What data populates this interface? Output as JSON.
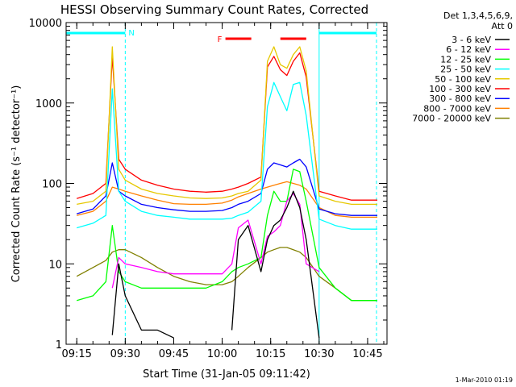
{
  "chart_data": {
    "type": "line",
    "title": "HESSI Observing Summary Count Rates, Corrected",
    "xlabel": "Start Time (31-Jan-05 09:11:42)",
    "ylabel": "Corrected Count Rate (s⁻¹ detector⁻¹)",
    "yscale": "log",
    "ylim": [
      1,
      10000
    ],
    "xlim": [
      "09:11:42",
      "10:51:00"
    ],
    "x_ticks": [
      "09:15",
      "09:30",
      "09:45",
      "10:00",
      "10:15",
      "10:30",
      "10:45"
    ],
    "y_ticks": [
      "1",
      "10",
      "100",
      "1000",
      "10000"
    ],
    "legend_header": [
      "Det 1,3,4,5,6,9,",
      "Att 0"
    ],
    "legend_position": "right",
    "date_stamp": "1-Mar-2010 01:19",
    "flags": [
      {
        "label": "N",
        "color": "#00ffff",
        "kind": "night",
        "start": "09:11:42",
        "end": "09:30:00"
      },
      {
        "label": "",
        "color": "#00ffff",
        "kind": "night",
        "start": "10:30:00",
        "end": "10:47:45"
      },
      {
        "label": "F",
        "color": "#ff0000",
        "kind": "flare",
        "start": "10:01:00",
        "end": "10:09:00"
      },
      {
        "label": "",
        "color": "#ff0000",
        "kind": "flare",
        "start": "10:18:00",
        "end": "10:26:00"
      }
    ],
    "x": [
      "09:15",
      "09:20",
      "09:24",
      "09:26",
      "09:28",
      "09:30",
      "09:35",
      "09:40",
      "09:45",
      "09:50",
      "09:55",
      "10:00",
      "10:03",
      "10:05",
      "10:08",
      "10:12",
      "10:14",
      "10:16",
      "10:18",
      "10:20",
      "10:22",
      "10:24",
      "10:26",
      "10:30",
      "10:35",
      "10:40",
      "10:45",
      "10:48"
    ],
    "series": [
      {
        "name": "3 - 6 keV",
        "color": "#000000",
        "values": [
          null,
          null,
          null,
          1.3,
          10,
          4,
          1.5,
          1.5,
          1.2,
          null,
          null,
          null,
          1.5,
          20,
          30,
          8,
          20,
          30,
          35,
          50,
          80,
          50,
          20,
          1.2,
          null,
          null,
          null,
          null
        ]
      },
      {
        "name": "6 - 12 keV",
        "color": "#ff00ff",
        "values": [
          null,
          null,
          null,
          5,
          12,
          10,
          9,
          8,
          7.5,
          7.5,
          7.5,
          7.5,
          10,
          28,
          35,
          10,
          22,
          25,
          30,
          60,
          75,
          55,
          10,
          8,
          null,
          null,
          null,
          null
        ]
      },
      {
        "name": "12 - 25 keV",
        "color": "#00ff00",
        "values": [
          3.5,
          4,
          6,
          30,
          8,
          6,
          5,
          5,
          5,
          5,
          5,
          6,
          8,
          9,
          10,
          12,
          40,
          80,
          60,
          60,
          150,
          140,
          60,
          9,
          5,
          3.5,
          3.5,
          3.5
        ]
      },
      {
        "name": "25 - 50 keV",
        "color": "#00ffff",
        "values": [
          28,
          32,
          40,
          1500,
          80,
          60,
          45,
          40,
          38,
          36,
          36,
          36,
          37,
          40,
          44,
          60,
          900,
          1800,
          1200,
          800,
          1700,
          1800,
          700,
          36,
          30,
          27,
          27,
          27
        ]
      },
      {
        "name": "50 - 100 keV",
        "color": "#e6c800",
        "values": [
          55,
          60,
          80,
          5000,
          150,
          110,
          85,
          75,
          70,
          66,
          65,
          66,
          70,
          75,
          80,
          110,
          3300,
          5000,
          3000,
          2700,
          4000,
          5000,
          2500,
          70,
          60,
          55,
          55,
          55
        ]
      },
      {
        "name": "100 - 300 keV",
        "color": "#ff0000",
        "values": [
          65,
          75,
          100,
          3800,
          200,
          150,
          110,
          95,
          85,
          80,
          78,
          80,
          85,
          90,
          100,
          120,
          2800,
          3800,
          2600,
          2200,
          3300,
          4200,
          2100,
          80,
          70,
          62,
          62,
          62
        ]
      },
      {
        "name": "300 - 800 keV",
        "color": "#0000ff",
        "values": [
          42,
          48,
          70,
          180,
          80,
          70,
          55,
          50,
          47,
          45,
          45,
          46,
          50,
          55,
          60,
          75,
          150,
          180,
          170,
          160,
          180,
          200,
          160,
          48,
          42,
          40,
          40,
          40
        ]
      },
      {
        "name": "800 - 7000 keV",
        "color": "#ff8000",
        "values": [
          40,
          45,
          60,
          90,
          85,
          80,
          70,
          62,
          56,
          55,
          55,
          57,
          62,
          68,
          75,
          85,
          90,
          95,
          100,
          105,
          100,
          95,
          85,
          50,
          40,
          38,
          38,
          38
        ]
      },
      {
        "name": "7000 - 20000 keV",
        "color": "#808000",
        "values": [
          7,
          9,
          11,
          14,
          15,
          15,
          12,
          9,
          7,
          6,
          5.5,
          5.5,
          6,
          7,
          9,
          12,
          14,
          15,
          16,
          16,
          15,
          14,
          12,
          7,
          5,
          3.5,
          3.5,
          3.5
        ]
      }
    ]
  }
}
